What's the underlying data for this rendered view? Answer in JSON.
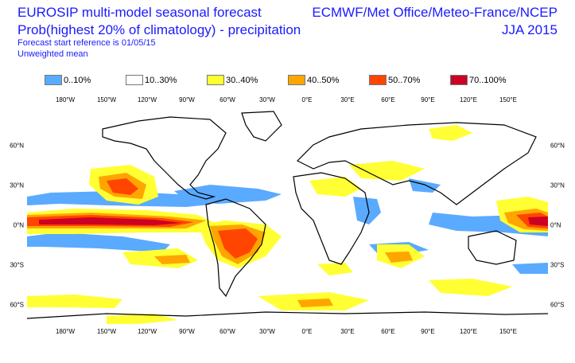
{
  "header": {
    "left_line1": "EUROSIP multi-model seasonal forecast",
    "left_line2": "Prob(highest 20% of climatology) - precipitation",
    "left_line3": "Forecast start reference is 01/05/15",
    "left_line4": "Unweighted mean",
    "right_line1": "ECMWF/Met Office/Meteo-France/NCEP",
    "right_line2": "JJA 2015"
  },
  "legend": [
    {
      "label": "0..10%",
      "color": "#5aaaff"
    },
    {
      "label": "10..30%",
      "color": "#ffffff"
    },
    {
      "label": "30..40%",
      "color": "#ffff33"
    },
    {
      "label": "40..50%",
      "color": "#ffa500"
    },
    {
      "label": "50..70%",
      "color": "#ff4500"
    },
    {
      "label": "70..100%",
      "color": "#cc0022"
    }
  ],
  "axes": {
    "longitude_labels": [
      "180°W",
      "150°W",
      "120°W",
      "90°W",
      "60°W",
      "30°W",
      "0°E",
      "30°E",
      "60°E",
      "90°E",
      "120°E",
      "150°E"
    ],
    "latitude_labels_left": [
      "60°N",
      "30°N",
      "0°N",
      "30°S",
      "60°S"
    ],
    "latitude_labels_right": [
      "60°N",
      "30°N",
      "0°N",
      "30°S",
      "60°S"
    ]
  }
}
